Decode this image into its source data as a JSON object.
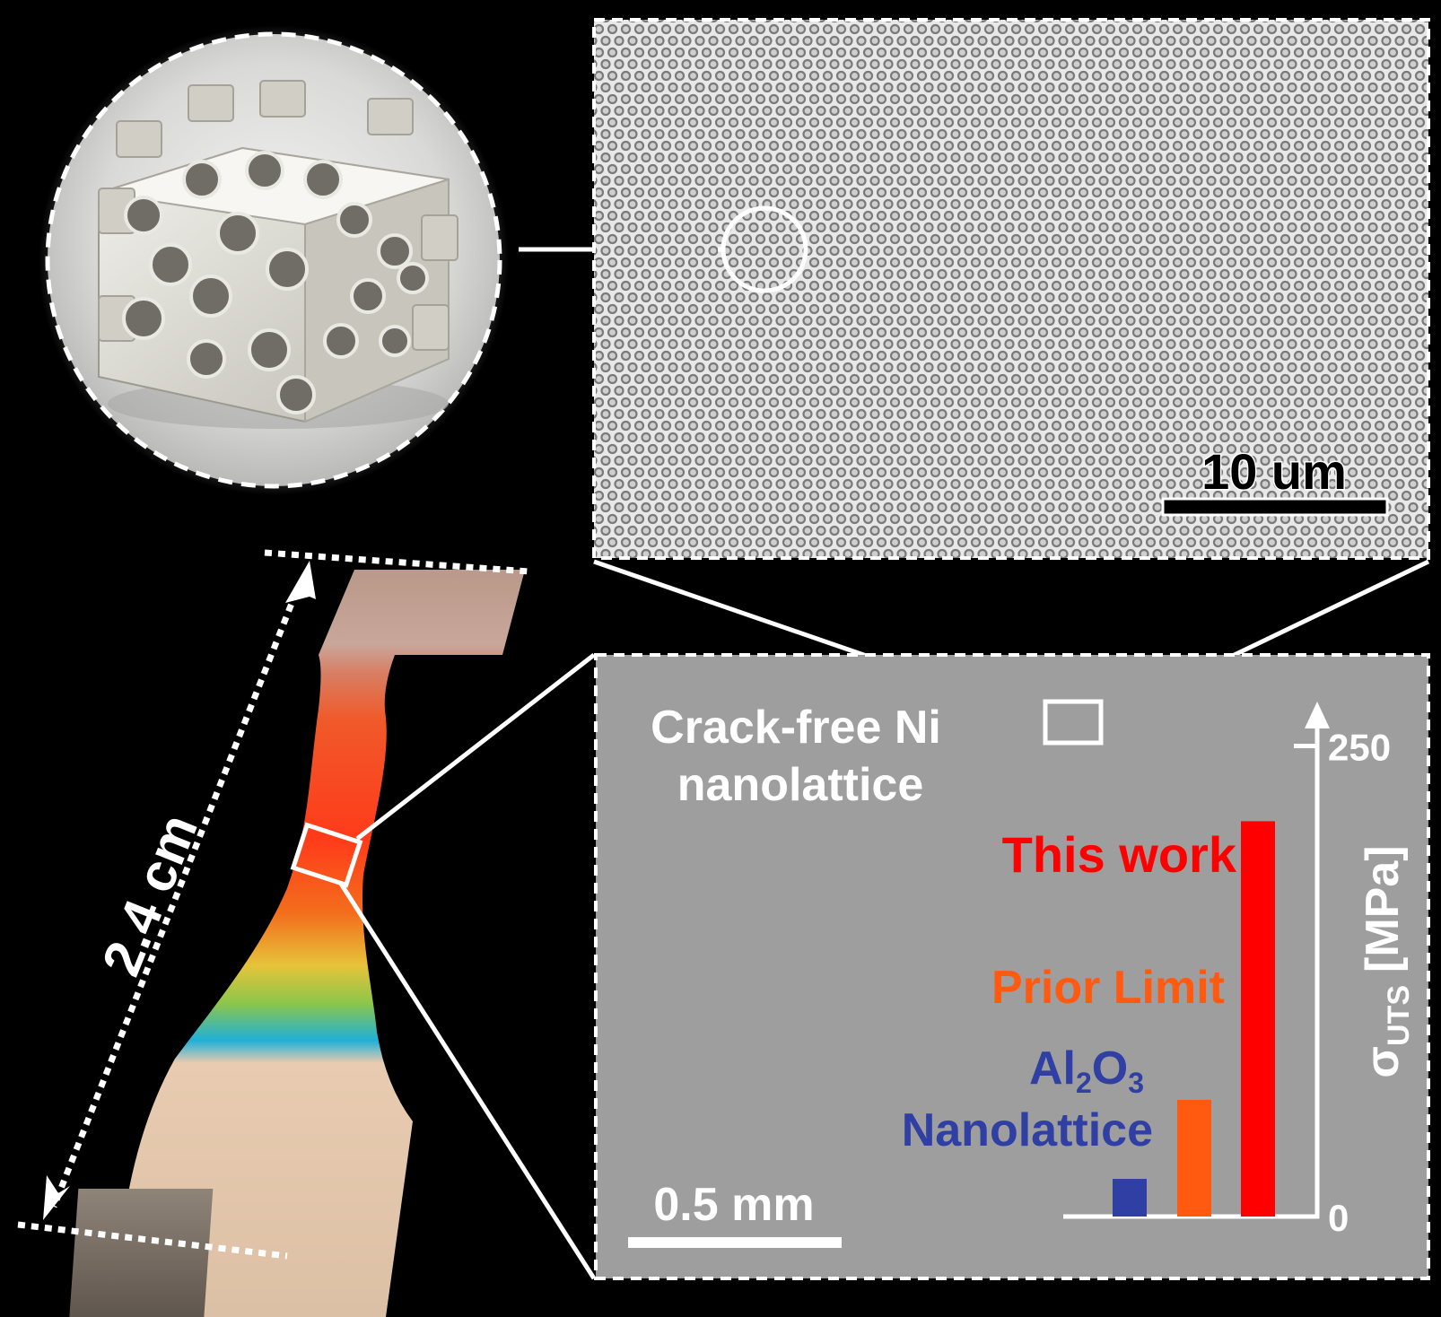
{
  "figure": {
    "background": "#000000",
    "unit_cell": {
      "icon": "gyroid-lattice-cube-icon",
      "color": "#d6d4cb"
    },
    "sem_micrograph": {
      "icon": "close-packed-pore-array-icon",
      "scale_bar_label": "10 um"
    },
    "specimen": {
      "icon": "dogbone-tensile-specimen-icon",
      "length_label": "2.4 cm",
      "colors": [
        "#b5322a",
        "#f2691d",
        "#f4c23a",
        "#86c548",
        "#1aa9d6",
        "#e6c9ad"
      ]
    },
    "zoom_panel": {
      "title_line1": "Crack-free Ni",
      "title_line2": "nanolattice",
      "scale_bar_label": "0.5 mm"
    }
  },
  "chart_data": {
    "type": "bar",
    "categories": [
      "Al2O3 Nanolattice",
      "Prior Limit",
      "This work"
    ],
    "values": [
      20,
      62,
      210
    ],
    "colors": [
      "#2f3fa3",
      "#ff5a10",
      "#ff0000"
    ],
    "ylabel_symbol": "σ",
    "ylabel_sub": "UTS",
    "ylabel_unit": "[MPa]",
    "ylim": [
      0,
      265
    ],
    "yticks": [
      0,
      250
    ],
    "ytick_labels": [
      "0",
      "250"
    ],
    "labels": {
      "al2o3_a": "Al",
      "al2o3_sub1": "2",
      "al2o3_o": "O",
      "al2o3_sub2": "3",
      "al2o3_line2": "Nanolattice",
      "prior": "Prior Limit",
      "this_work": "This work"
    }
  }
}
